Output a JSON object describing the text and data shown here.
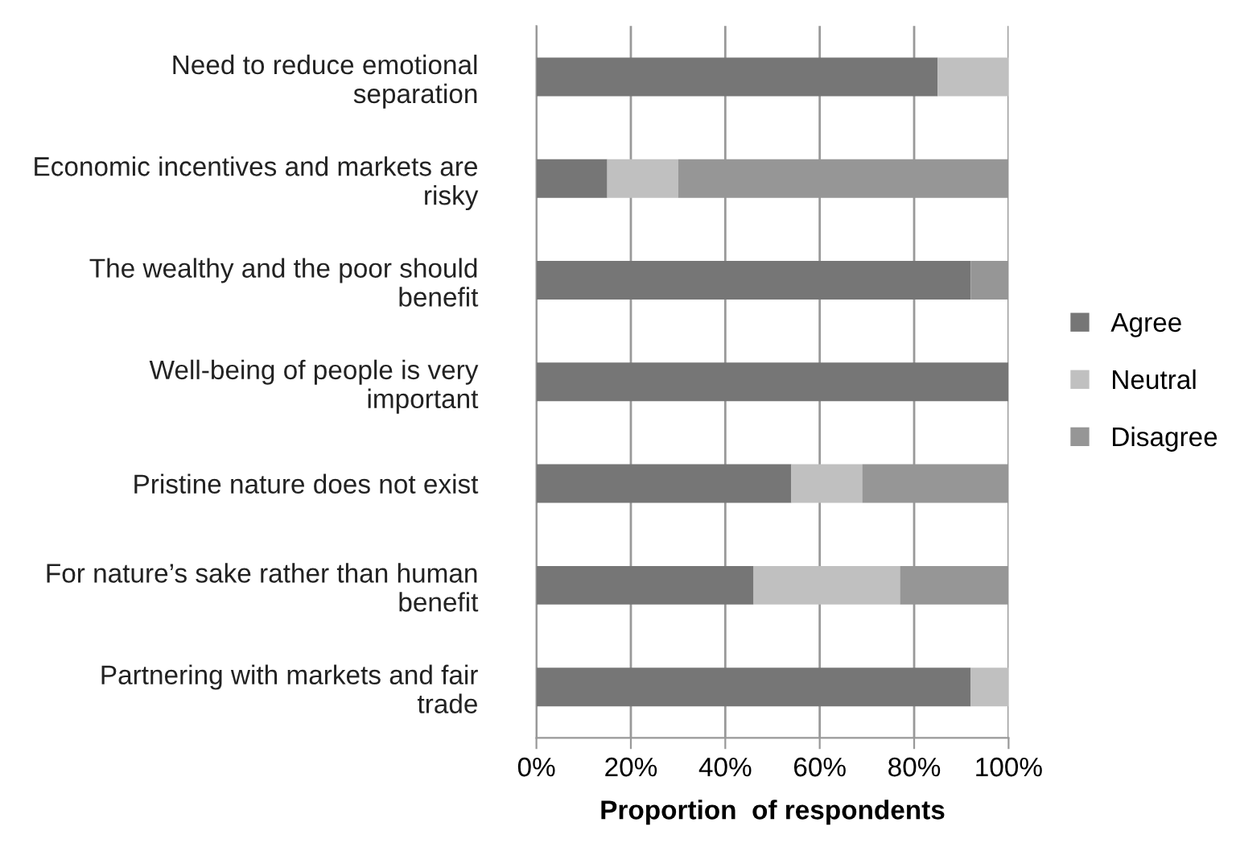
{
  "chart_data": {
    "type": "bar",
    "orientation": "horizontal",
    "stacked": true,
    "xlabel": "Proportion  of respondents",
    "categories": [
      "Need to reduce emotional\nseparation",
      "Economic incentives and markets are\nrisky",
      "The wealthy and the poor should\nbenefit",
      "Well-being of people is very\nimportant",
      "Pristine nature does not exist",
      "For nature’s sake rather than human\nbenefit",
      "Partnering with markets and fair\ntrade"
    ],
    "series": [
      {
        "name": "Agree",
        "color": "#767676",
        "values": [
          85,
          15,
          92,
          100,
          54,
          46,
          92
        ]
      },
      {
        "name": "Neutral",
        "color": "#c0c0c0",
        "values": [
          15,
          15,
          0,
          0,
          15,
          31,
          8
        ]
      },
      {
        "name": "Disagree",
        "color": "#969696",
        "values": [
          0,
          70,
          8,
          0,
          31,
          23,
          0
        ]
      }
    ],
    "xlim": [
      0,
      100
    ],
    "xticks": [
      {
        "value": 0,
        "label": "0%"
      },
      {
        "value": 20,
        "label": "20%"
      },
      {
        "value": 40,
        "label": "40%"
      },
      {
        "value": 60,
        "label": "60%"
      },
      {
        "value": 80,
        "label": "80%"
      },
      {
        "value": 100,
        "label": "100%"
      }
    ],
    "grid": "x",
    "legend": "right"
  }
}
